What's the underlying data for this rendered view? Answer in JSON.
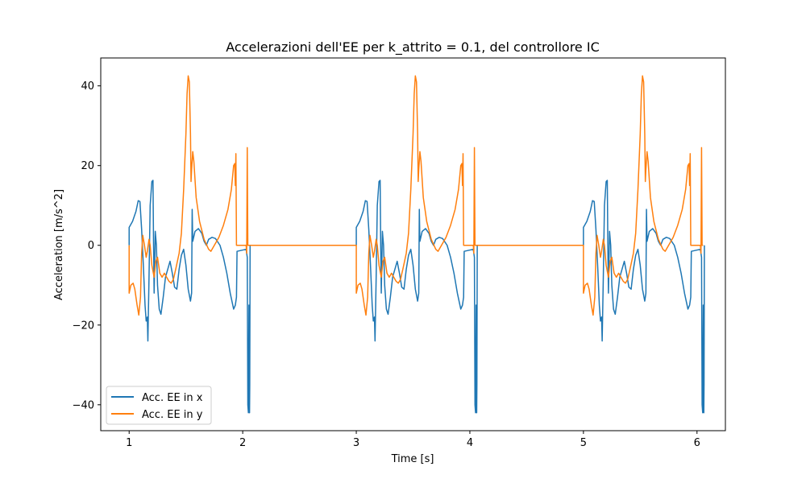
{
  "chart_data": {
    "type": "line",
    "title": "Accelerazioni dell'EE per k_attrito = 0.1, del controllore IC",
    "xlabel": "Time [s]",
    "ylabel": "Acceleration [m/s^2]",
    "xlim": [
      0.75,
      6.25
    ],
    "ylim": [
      -46.5,
      47.0
    ],
    "xticks": [
      1,
      2,
      3,
      4,
      5,
      6
    ],
    "yticks": [
      -40,
      -20,
      0,
      20,
      40
    ],
    "grid": false,
    "legend_position": "lower-left",
    "period": 2,
    "series": [
      {
        "name": "Acc. EE in x",
        "color": "#1f77b4",
        "segment_points": [
          [
            1.0,
            0
          ],
          [
            1.0,
            4.5
          ],
          [
            1.03,
            6
          ],
          [
            1.06,
            8.5
          ],
          [
            1.08,
            11.2
          ],
          [
            1.095,
            11
          ],
          [
            1.11,
            4
          ],
          [
            1.125,
            -5
          ],
          [
            1.14,
            -15
          ],
          [
            1.15,
            -19
          ],
          [
            1.16,
            -18
          ],
          [
            1.165,
            -24
          ],
          [
            1.175,
            -8
          ],
          [
            1.185,
            10
          ],
          [
            1.2,
            16
          ],
          [
            1.21,
            16.3
          ],
          [
            1.215,
            0
          ],
          [
            1.22,
            -12
          ],
          [
            1.23,
            3.5
          ],
          [
            1.24,
            0
          ],
          [
            1.25,
            -10
          ],
          [
            1.265,
            -16
          ],
          [
            1.28,
            -17.3
          ],
          [
            1.3,
            -13
          ],
          [
            1.32,
            -8
          ],
          [
            1.34,
            -6
          ],
          [
            1.36,
            -4
          ],
          [
            1.38,
            -7
          ],
          [
            1.4,
            -10.5
          ],
          [
            1.42,
            -11
          ],
          [
            1.44,
            -6
          ],
          [
            1.46,
            -2.5
          ],
          [
            1.48,
            -1
          ],
          [
            1.5,
            -5
          ],
          [
            1.52,
            -11
          ],
          [
            1.54,
            -14
          ],
          [
            1.55,
            -12
          ],
          [
            1.555,
            9
          ],
          [
            1.56,
            1
          ],
          [
            1.58,
            3.5
          ],
          [
            1.61,
            4.2
          ],
          [
            1.64,
            3
          ],
          [
            1.66,
            1
          ],
          [
            1.68,
            0
          ],
          [
            1.7,
            1.5
          ],
          [
            1.73,
            2
          ],
          [
            1.76,
            1.7
          ],
          [
            1.8,
            0
          ],
          [
            1.83,
            -3
          ],
          [
            1.86,
            -7
          ],
          [
            1.89,
            -12
          ],
          [
            1.92,
            -16
          ],
          [
            1.935,
            -15
          ],
          [
            1.945,
            -13
          ],
          [
            1.95,
            -1.5
          ],
          [
            2.03,
            -1
          ],
          [
            2.04,
            -3
          ],
          [
            2.045,
            -40
          ],
          [
            2.05,
            -42
          ],
          [
            2.055,
            -15
          ],
          [
            2.06,
            -42
          ],
          [
            2.062,
            -35
          ],
          [
            2.065,
            0
          ]
        ]
      },
      {
        "name": "Acc. EE in y",
        "color": "#ff7f0e",
        "segment_points": [
          [
            1.0,
            0
          ],
          [
            1.0,
            -12
          ],
          [
            1.015,
            -10
          ],
          [
            1.035,
            -9.5
          ],
          [
            1.05,
            -11
          ],
          [
            1.07,
            -15
          ],
          [
            1.085,
            -17.5
          ],
          [
            1.1,
            -13
          ],
          [
            1.11,
            -2
          ],
          [
            1.12,
            2.5
          ],
          [
            1.135,
            0
          ],
          [
            1.15,
            -3
          ],
          [
            1.16,
            -1.5
          ],
          [
            1.175,
            1.5
          ],
          [
            1.185,
            0
          ],
          [
            1.2,
            -5
          ],
          [
            1.22,
            -8
          ],
          [
            1.235,
            -4
          ],
          [
            1.25,
            -3
          ],
          [
            1.26,
            -5
          ],
          [
            1.27,
            -7
          ],
          [
            1.29,
            -8
          ],
          [
            1.31,
            -7
          ],
          [
            1.33,
            -8
          ],
          [
            1.35,
            -9
          ],
          [
            1.37,
            -9.5
          ],
          [
            1.39,
            -8.5
          ],
          [
            1.41,
            -6
          ],
          [
            1.44,
            -2
          ],
          [
            1.46,
            3
          ],
          [
            1.48,
            14
          ],
          [
            1.5,
            28
          ],
          [
            1.51,
            38
          ],
          [
            1.52,
            42.5
          ],
          [
            1.53,
            41
          ],
          [
            1.54,
            28
          ],
          [
            1.545,
            16
          ],
          [
            1.55,
            19
          ],
          [
            1.56,
            23.5
          ],
          [
            1.57,
            21
          ],
          [
            1.59,
            12
          ],
          [
            1.62,
            6
          ],
          [
            1.66,
            1.5
          ],
          [
            1.7,
            -1
          ],
          [
            1.72,
            -1.5
          ],
          [
            1.75,
            0
          ],
          [
            1.79,
            2
          ],
          [
            1.83,
            5
          ],
          [
            1.87,
            9
          ],
          [
            1.9,
            14
          ],
          [
            1.92,
            20
          ],
          [
            1.93,
            20.5
          ],
          [
            1.935,
            15
          ],
          [
            1.94,
            23
          ],
          [
            1.945,
            0
          ],
          [
            2.02,
            0
          ],
          [
            2.03,
            0
          ],
          [
            2.035,
            -2
          ],
          [
            2.04,
            24.5
          ],
          [
            2.045,
            0
          ],
          [
            2.05,
            0
          ]
        ]
      }
    ]
  }
}
